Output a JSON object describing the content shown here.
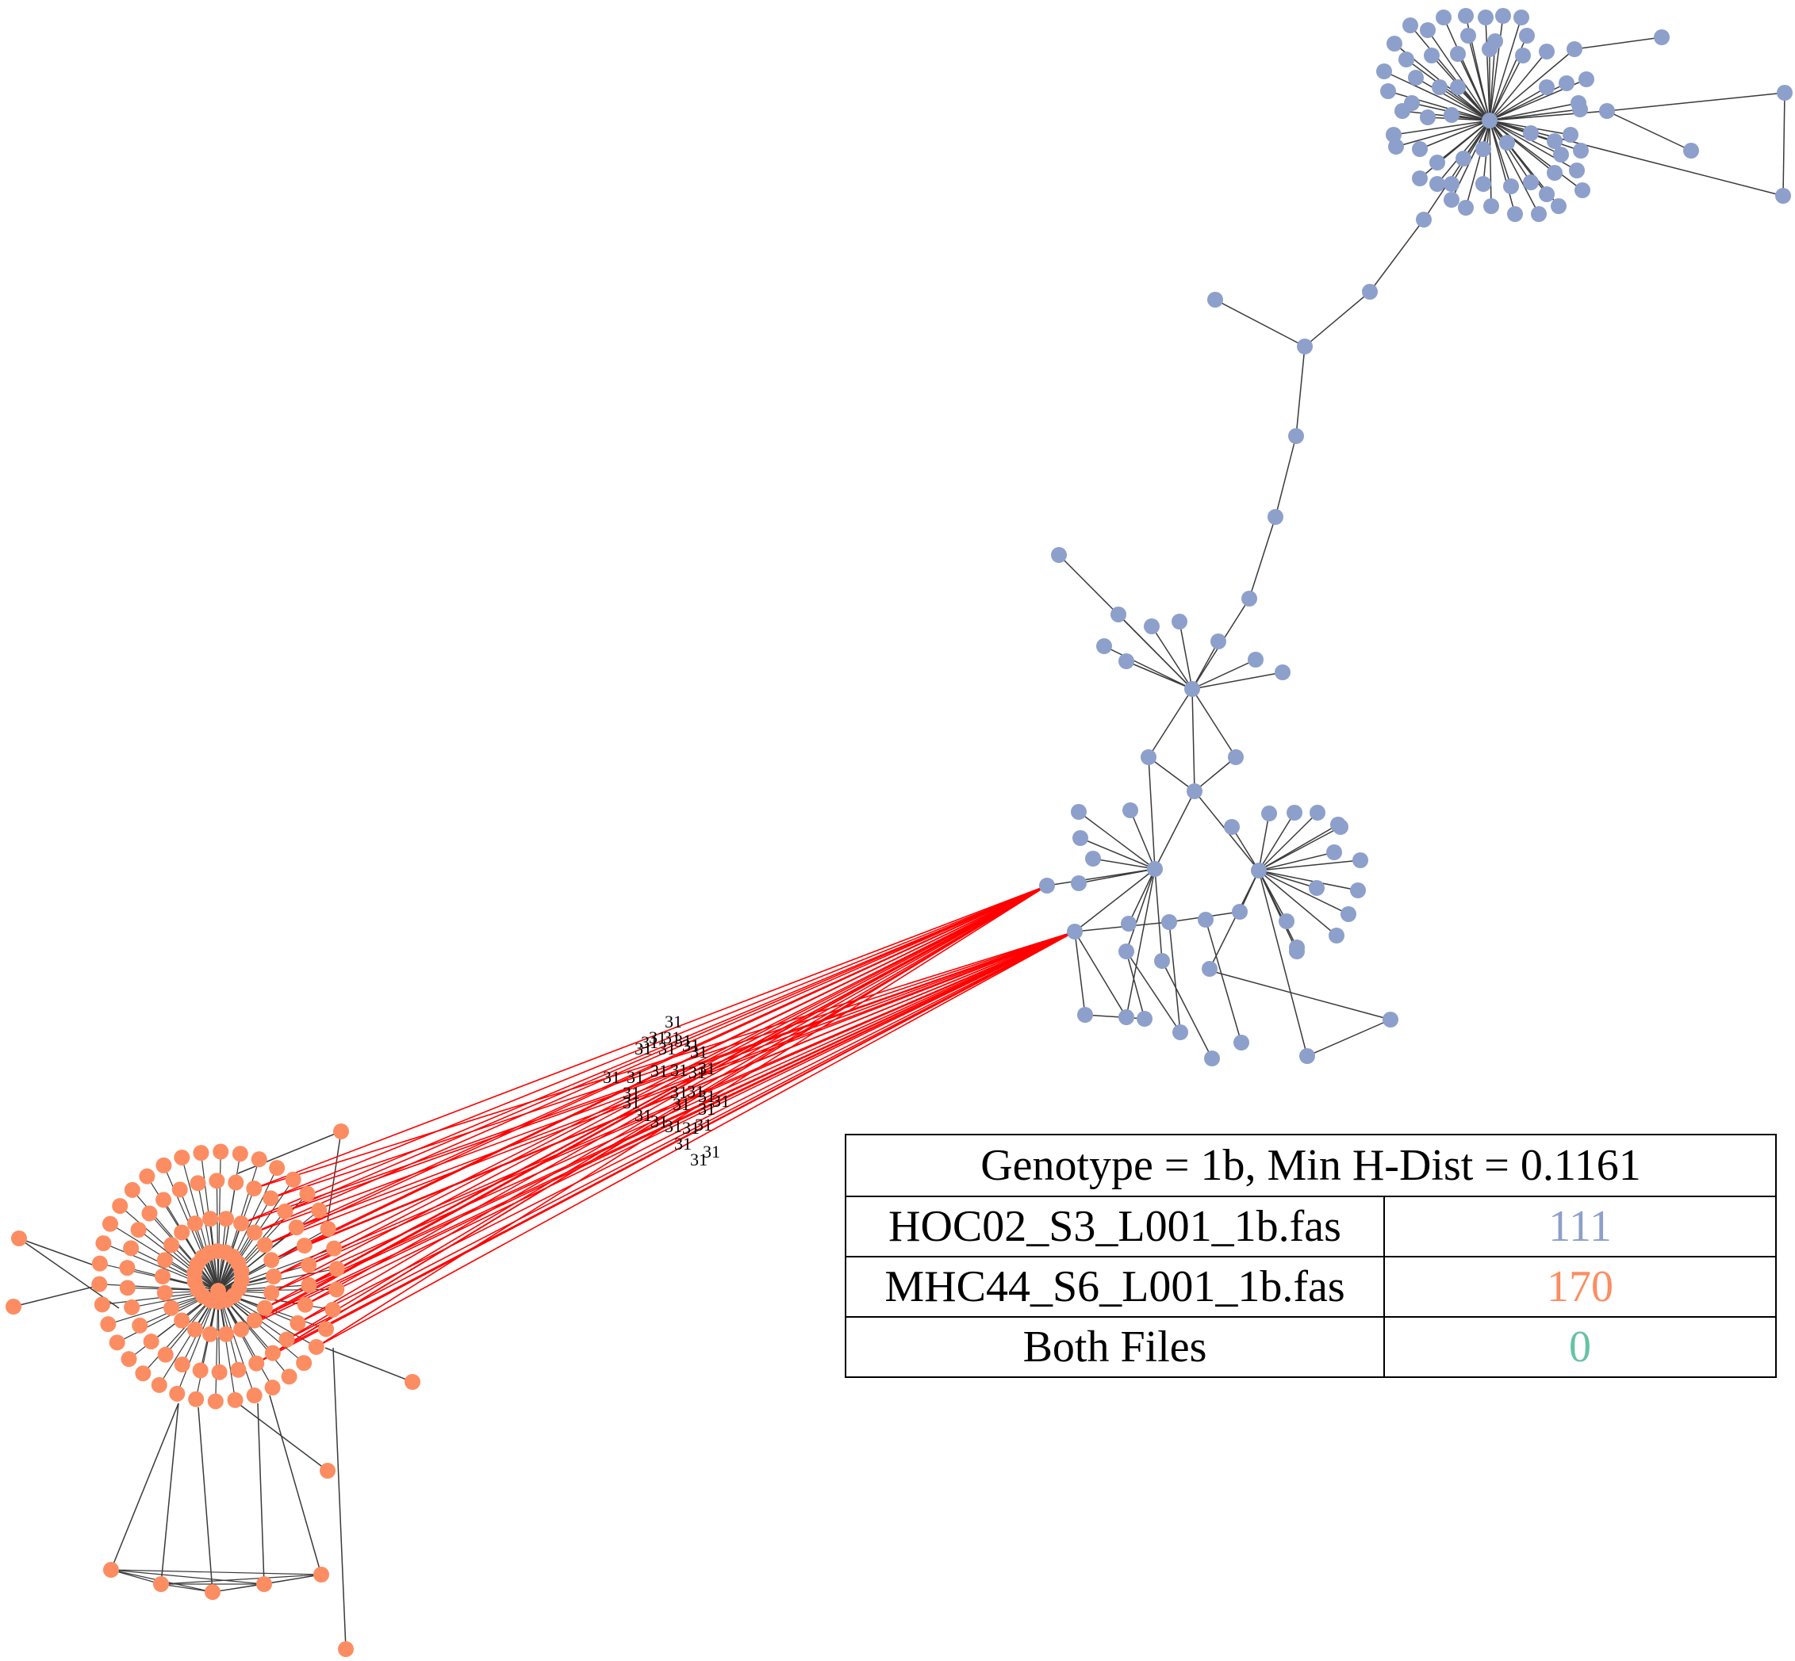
{
  "legend": {
    "title": "Genotype = 1b, Min H-Dist = 0.1161",
    "rows": [
      {
        "label": "HOC02_S3_L001_1b.fas",
        "value": "111",
        "color": "#8da0cb"
      },
      {
        "label": "MHC44_S6_L001_1b.fas",
        "value": "170",
        "color": "#fc8d62"
      },
      {
        "label": "Both Files",
        "value": "0",
        "color": "#66c2a5"
      }
    ]
  },
  "graph": {
    "file1_color": "#8da0cb",
    "file2_color": "#fc8d62",
    "cross_edge_color": "#ff0000",
    "edge_color": "#3a3a3a",
    "cross_edge_label": "31"
  }
}
